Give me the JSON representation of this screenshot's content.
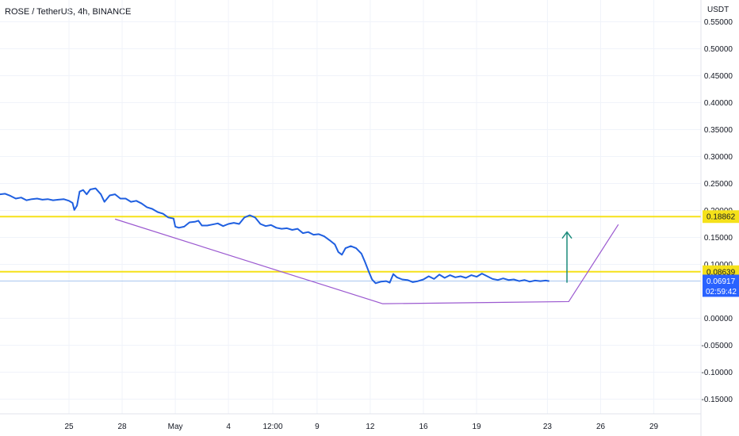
{
  "header": {
    "title": "ROSE / TetherUS, 4h, BINANCE"
  },
  "colors": {
    "price_line": "#1f5fe0",
    "level_line": "#f5e11a",
    "pattern_line": "#9b59d0",
    "arrow": "#1a8a7a",
    "current_tag": "#2962ff",
    "current_price_line": "#a9c7ef",
    "grid": "#f0f3fa"
  },
  "chart_data": {
    "type": "line",
    "title": "ROSE / TetherUS, 4h, BINANCE",
    "ylabel": "USDT",
    "ylim": [
      -0.18,
      0.57
    ],
    "y_ticks": [
      {
        "value": 0.55,
        "label": "0.55000"
      },
      {
        "value": 0.5,
        "label": "0.50000"
      },
      {
        "value": 0.45,
        "label": "0.45000"
      },
      {
        "value": 0.4,
        "label": "0.40000"
      },
      {
        "value": 0.35,
        "label": "0.35000"
      },
      {
        "value": 0.3,
        "label": "0.30000"
      },
      {
        "value": 0.25,
        "label": "0.25000"
      },
      {
        "value": 0.2,
        "label": "0.20000"
      },
      {
        "value": 0.15,
        "label": "0.15000"
      },
      {
        "value": 0.1,
        "label": "0.10000"
      },
      {
        "value": 0.0,
        "label": "0.00000"
      },
      {
        "value": -0.05,
        "label": "-0.05000"
      },
      {
        "value": -0.1,
        "label": "-0.10000"
      },
      {
        "value": -0.15,
        "label": "-0.15000"
      }
    ],
    "x_ticks": [
      {
        "t": 0,
        "label": "25"
      },
      {
        "t": 3,
        "label": "28"
      },
      {
        "t": 6,
        "label": "May"
      },
      {
        "t": 9,
        "label": "4"
      },
      {
        "t": 11.5,
        "label": "12:00"
      },
      {
        "t": 14,
        "label": "9"
      },
      {
        "t": 17,
        "label": "12"
      },
      {
        "t": 20,
        "label": "16"
      },
      {
        "t": 23,
        "label": "19"
      },
      {
        "t": 27,
        "label": "23"
      },
      {
        "t": 30,
        "label": "26"
      },
      {
        "t": 33,
        "label": "29"
      }
    ],
    "x_range": [
      -3.9,
      36.5
    ],
    "series": [
      {
        "name": "",
        "values": [
          [
            -3.9,
            0.23
          ],
          [
            -3.6,
            0.231
          ],
          [
            -3.3,
            0.227
          ],
          [
            -3.0,
            0.222
          ],
          [
            -2.7,
            0.224
          ],
          [
            -2.4,
            0.219
          ],
          [
            -2.1,
            0.221
          ],
          [
            -1.8,
            0.222
          ],
          [
            -1.5,
            0.22
          ],
          [
            -1.2,
            0.221
          ],
          [
            -0.9,
            0.219
          ],
          [
            -0.6,
            0.22
          ],
          [
            -0.3,
            0.221
          ],
          [
            0.0,
            0.218
          ],
          [
            0.2,
            0.214
          ],
          [
            0.3,
            0.201
          ],
          [
            0.45,
            0.209
          ],
          [
            0.6,
            0.235
          ],
          [
            0.8,
            0.238
          ],
          [
            1.0,
            0.23
          ],
          [
            1.2,
            0.239
          ],
          [
            1.5,
            0.241
          ],
          [
            1.8,
            0.23
          ],
          [
            2.0,
            0.216
          ],
          [
            2.3,
            0.228
          ],
          [
            2.6,
            0.23
          ],
          [
            2.9,
            0.222
          ],
          [
            3.2,
            0.222
          ],
          [
            3.5,
            0.216
          ],
          [
            3.8,
            0.218
          ],
          [
            4.1,
            0.213
          ],
          [
            4.4,
            0.206
          ],
          [
            4.7,
            0.203
          ],
          [
            5.0,
            0.197
          ],
          [
            5.3,
            0.194
          ],
          [
            5.6,
            0.187
          ],
          [
            5.9,
            0.185
          ],
          [
            6.0,
            0.17
          ],
          [
            6.2,
            0.168
          ],
          [
            6.5,
            0.17
          ],
          [
            6.8,
            0.178
          ],
          [
            7.1,
            0.179
          ],
          [
            7.3,
            0.181
          ],
          [
            7.5,
            0.172
          ],
          [
            7.8,
            0.172
          ],
          [
            8.1,
            0.174
          ],
          [
            8.4,
            0.176
          ],
          [
            8.7,
            0.171
          ],
          [
            9.0,
            0.175
          ],
          [
            9.3,
            0.177
          ],
          [
            9.6,
            0.175
          ],
          [
            9.9,
            0.187
          ],
          [
            10.2,
            0.191
          ],
          [
            10.5,
            0.187
          ],
          [
            10.8,
            0.175
          ],
          [
            11.1,
            0.171
          ],
          [
            11.4,
            0.173
          ],
          [
            11.7,
            0.168
          ],
          [
            12.0,
            0.166
          ],
          [
            12.3,
            0.167
          ],
          [
            12.6,
            0.164
          ],
          [
            12.9,
            0.166
          ],
          [
            13.2,
            0.158
          ],
          [
            13.5,
            0.16
          ],
          [
            13.8,
            0.155
          ],
          [
            14.1,
            0.156
          ],
          [
            14.4,
            0.152
          ],
          [
            14.7,
            0.145
          ],
          [
            15.0,
            0.137
          ],
          [
            15.2,
            0.123
          ],
          [
            15.4,
            0.118
          ],
          [
            15.6,
            0.13
          ],
          [
            15.9,
            0.134
          ],
          [
            16.2,
            0.13
          ],
          [
            16.5,
            0.12
          ],
          [
            16.7,
            0.105
          ],
          [
            16.9,
            0.088
          ],
          [
            17.1,
            0.072
          ],
          [
            17.3,
            0.065
          ],
          [
            17.6,
            0.068
          ],
          [
            17.9,
            0.069
          ],
          [
            18.1,
            0.066
          ],
          [
            18.3,
            0.082
          ],
          [
            18.5,
            0.076
          ],
          [
            18.8,
            0.072
          ],
          [
            19.1,
            0.071
          ],
          [
            19.4,
            0.067
          ],
          [
            19.7,
            0.069
          ],
          [
            20.0,
            0.072
          ],
          [
            20.3,
            0.078
          ],
          [
            20.6,
            0.073
          ],
          [
            20.9,
            0.081
          ],
          [
            21.2,
            0.075
          ],
          [
            21.5,
            0.08
          ],
          [
            21.8,
            0.076
          ],
          [
            22.1,
            0.078
          ],
          [
            22.4,
            0.075
          ],
          [
            22.7,
            0.08
          ],
          [
            23.0,
            0.077
          ],
          [
            23.3,
            0.083
          ],
          [
            23.6,
            0.078
          ],
          [
            23.9,
            0.073
          ],
          [
            24.2,
            0.071
          ],
          [
            24.5,
            0.074
          ],
          [
            24.8,
            0.071
          ],
          [
            25.1,
            0.072
          ],
          [
            25.4,
            0.069
          ],
          [
            25.7,
            0.071
          ],
          [
            26.0,
            0.068
          ],
          [
            26.3,
            0.07
          ],
          [
            26.6,
            0.069
          ],
          [
            26.9,
            0.07
          ],
          [
            27.1,
            0.069
          ]
        ]
      }
    ],
    "horizontal_levels": [
      {
        "value": 0.18862,
        "label": "0.18862"
      },
      {
        "value": 0.08639,
        "label": "0.08639"
      }
    ],
    "current_price": {
      "value": 0.06917,
      "label": "0.06917",
      "countdown": "02:59:42"
    },
    "drawings": {
      "pattern_line": [
        [
          2.6,
          0.184
        ],
        [
          17.7,
          0.027
        ],
        [
          28.2,
          0.031
        ],
        [
          31.0,
          0.174
        ]
      ],
      "arrow": {
        "x": 28.1,
        "from": 0.066,
        "to": 0.16
      }
    }
  }
}
